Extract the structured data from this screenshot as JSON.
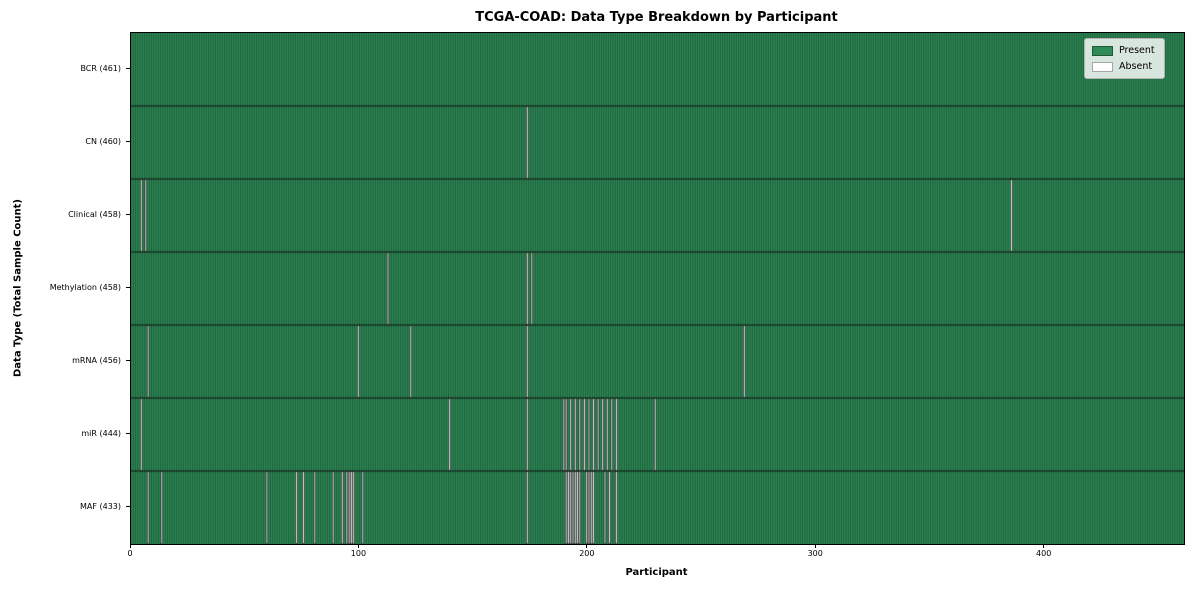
{
  "title": "TCGA-COAD: Data Type Breakdown by Participant",
  "chart_data": {
    "type": "heatmap",
    "title": "TCGA-COAD: Data Type Breakdown by Participant",
    "xlabel": "Participant",
    "ylabel": "Data Type (Total Sample Count)",
    "x_ticks": [
      0,
      100,
      200,
      300,
      400
    ],
    "xlim": [
      0,
      461
    ],
    "total_participants": 461,
    "grid": false,
    "legend_position": "upper right",
    "legend": [
      {
        "label": "Present",
        "color": "#2e8b57"
      },
      {
        "label": "Absent",
        "color": "#ffffff"
      }
    ],
    "colors": {
      "present": "#2e8b57",
      "absent": "#ffffff",
      "cell_edge": "rgba(0,0,0,0.5)",
      "row_separator": "#111111",
      "axis": "#000000"
    },
    "rows": [
      {
        "label": "BCR (461)",
        "name": "BCR",
        "count": 461,
        "absent_participants": []
      },
      {
        "label": "CN (460)",
        "name": "CN",
        "count": 460,
        "absent_participants": [
          173
        ]
      },
      {
        "label": "Clinical (458)",
        "name": "Clinical",
        "count": 458,
        "absent_participants": [
          4,
          6,
          385
        ]
      },
      {
        "label": "Methylation (458)",
        "name": "Methylation",
        "count": 458,
        "absent_participants": [
          112,
          173,
          175
        ]
      },
      {
        "label": "mRNA (456)",
        "name": "mRNA",
        "count": 456,
        "absent_participants": [
          7,
          99,
          122,
          173,
          268
        ]
      },
      {
        "label": "miR (444)",
        "name": "miR",
        "count": 444,
        "absent_participants": [
          4,
          139,
          173,
          189,
          190,
          192,
          194,
          196,
          198,
          200,
          202,
          204,
          206,
          208,
          210,
          212,
          229
        ]
      },
      {
        "label": "MAF (433)",
        "name": "MAF",
        "count": 433,
        "absent_participants": [
          7,
          13,
          59,
          72,
          75,
          80,
          88,
          92,
          94,
          95,
          96,
          97,
          101,
          173,
          190,
          191,
          192,
          193,
          194,
          195,
          196,
          199,
          200,
          201,
          202,
          207,
          209,
          212
        ]
      }
    ]
  }
}
